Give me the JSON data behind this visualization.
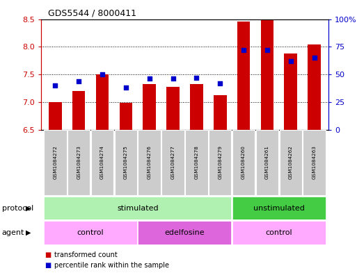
{
  "title": "GDS5544 / 8000411",
  "samples": [
    "GSM1084272",
    "GSM1084273",
    "GSM1084274",
    "GSM1084275",
    "GSM1084276",
    "GSM1084277",
    "GSM1084278",
    "GSM1084279",
    "GSM1084260",
    "GSM1084261",
    "GSM1084262",
    "GSM1084263"
  ],
  "transformed_count": [
    7.0,
    7.2,
    7.5,
    6.98,
    7.33,
    7.27,
    7.33,
    7.13,
    8.46,
    8.49,
    7.88,
    8.04
  ],
  "percentile_rank": [
    40,
    44,
    50,
    38,
    46,
    46,
    47,
    42,
    72,
    72,
    62,
    65
  ],
  "ylim_left": [
    6.5,
    8.5
  ],
  "ylim_right": [
    0,
    100
  ],
  "yticks_left": [
    6.5,
    7.0,
    7.5,
    8.0,
    8.5
  ],
  "yticks_right": [
    0,
    25,
    50,
    75,
    100
  ],
  "ytick_labels_right": [
    "0",
    "25",
    "50",
    "75",
    "100%"
  ],
  "bar_color": "#cc0000",
  "dot_color": "#0000cc",
  "bar_bottom": 6.5,
  "protocol_groups": [
    {
      "label": "stimulated",
      "start": 0,
      "end": 8,
      "color": "#b0f0b0"
    },
    {
      "label": "unstimulated",
      "start": 8,
      "end": 12,
      "color": "#44cc44"
    }
  ],
  "agent_groups": [
    {
      "label": "control",
      "start": 0,
      "end": 4,
      "color": "#ffaaff"
    },
    {
      "label": "edelfosine",
      "start": 4,
      "end": 8,
      "color": "#dd66dd"
    },
    {
      "label": "control",
      "start": 8,
      "end": 12,
      "color": "#ffaaff"
    }
  ],
  "legend_items": [
    {
      "label": "transformed count",
      "color": "#cc0000"
    },
    {
      "label": "percentile rank within the sample",
      "color": "#0000cc"
    }
  ],
  "background_color": "#ffffff",
  "label_protocol": "protocol",
  "label_agent": "agent",
  "xtick_box_color": "#cccccc",
  "grid_yticks": [
    7.0,
    7.5,
    8.0
  ]
}
